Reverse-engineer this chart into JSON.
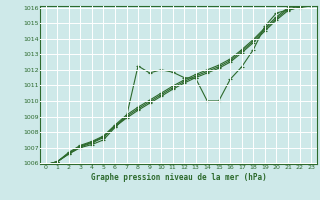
{
  "title": "Graphe pression niveau de la mer (hPa)",
  "background_color": "#cee9e9",
  "grid_color": "#ffffff",
  "line_color": "#2d6a2d",
  "xlim": [
    0,
    23
  ],
  "ylim": [
    1006,
    1016
  ],
  "xticks": [
    0,
    1,
    2,
    3,
    4,
    5,
    6,
    7,
    8,
    9,
    10,
    11,
    12,
    13,
    14,
    15,
    16,
    17,
    18,
    19,
    20,
    21,
    22,
    23
  ],
  "yticks": [
    1006,
    1007,
    1008,
    1009,
    1010,
    1011,
    1012,
    1013,
    1014,
    1015,
    1016
  ],
  "line1_x": [
    0,
    1,
    2,
    3,
    4,
    5,
    6,
    7,
    8,
    9,
    10,
    11,
    12,
    13,
    14,
    15,
    16,
    17,
    18,
    19,
    20,
    21,
    22,
    23
  ],
  "line1_y": [
    1005.9,
    1006.1,
    1006.6,
    1007.0,
    1007.2,
    1007.5,
    1008.3,
    1009.0,
    1012.25,
    1011.8,
    1012.0,
    1011.85,
    1011.5,
    1011.45,
    1010.0,
    1010.0,
    1011.4,
    1012.2,
    1013.3,
    1014.8,
    1015.65,
    1015.85,
    1016.0,
    1016.1
  ],
  "line2_x": [
    0,
    1,
    2,
    3,
    4,
    5,
    6,
    7,
    8,
    9,
    10,
    11,
    12,
    13,
    14,
    15,
    16,
    17,
    18,
    19,
    20,
    21,
    22,
    23
  ],
  "line2_y": [
    1005.9,
    1006.1,
    1006.6,
    1007.05,
    1007.3,
    1007.65,
    1008.35,
    1008.9,
    1009.4,
    1009.85,
    1010.3,
    1010.75,
    1011.15,
    1011.5,
    1011.8,
    1012.1,
    1012.5,
    1013.1,
    1013.75,
    1014.5,
    1015.2,
    1015.8,
    1016.05,
    1016.1
  ],
  "line3_x": [
    0,
    1,
    2,
    3,
    4,
    5,
    6,
    7,
    8,
    9,
    10,
    11,
    12,
    13,
    14,
    15,
    16,
    17,
    18,
    19,
    20,
    21,
    22,
    23
  ],
  "line3_y": [
    1005.9,
    1006.1,
    1006.65,
    1007.1,
    1007.35,
    1007.7,
    1008.4,
    1009.0,
    1009.5,
    1009.95,
    1010.4,
    1010.85,
    1011.25,
    1011.6,
    1011.9,
    1012.2,
    1012.6,
    1013.2,
    1013.85,
    1014.6,
    1015.3,
    1015.9,
    1016.1,
    1016.15
  ],
  "line4_x": [
    0,
    1,
    2,
    3,
    4,
    5,
    6,
    7,
    8,
    9,
    10,
    11,
    12,
    13,
    14,
    15,
    16,
    17,
    18,
    19,
    20,
    21,
    22,
    23
  ],
  "line4_y": [
    1005.9,
    1006.1,
    1006.7,
    1007.15,
    1007.4,
    1007.75,
    1008.45,
    1009.1,
    1009.6,
    1010.05,
    1010.5,
    1010.95,
    1011.35,
    1011.7,
    1012.0,
    1012.3,
    1012.7,
    1013.3,
    1013.95,
    1014.7,
    1015.4,
    1016.0,
    1016.15,
    1016.2
  ]
}
